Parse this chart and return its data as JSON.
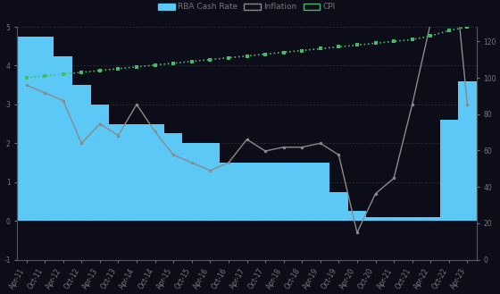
{
  "background_color": "#0d0d1a",
  "plot_bg_color": "#0d0d1a",
  "bar_color": "#5bc8f5",
  "bar_alpha": 1.0,
  "inflation_color": "#8a8a8a",
  "cpi_color": "#44bb66",
  "categories": [
    "Apr-11",
    "Oct-11",
    "Apr-12",
    "Oct-12",
    "Apr-13",
    "Oct-13",
    "Apr-14",
    "Oct-14",
    "Apr-15",
    "Oct-15",
    "Apr-16",
    "Oct-16",
    "Apr-17",
    "Oct-17",
    "Apr-18",
    "Oct-18",
    "Apr-19",
    "Oct-19",
    "Apr-20",
    "Oct-20",
    "Apr-21",
    "Oct-21",
    "Apr-22",
    "Oct-22",
    "Apr-23"
  ],
  "cash_rate": [
    4.75,
    4.75,
    4.25,
    3.5,
    3.0,
    2.5,
    2.5,
    2.5,
    2.25,
    2.0,
    2.0,
    1.5,
    1.5,
    1.5,
    1.5,
    1.5,
    1.5,
    0.75,
    0.25,
    0.1,
    0.1,
    0.1,
    0.1,
    2.6,
    3.6
  ],
  "inflation_values": [
    3.5,
    3.3,
    3.1,
    2.0,
    2.5,
    2.2,
    3.0,
    2.3,
    1.7,
    1.5,
    1.3,
    1.5,
    2.1,
    1.8,
    1.9,
    1.9,
    2.0,
    1.7,
    -0.3,
    0.7,
    1.1,
    3.0,
    5.1,
    7.8,
    3.0
  ],
  "cpi_values": [
    100,
    101,
    102,
    103,
    104,
    105,
    106,
    107,
    108,
    109,
    110,
    111,
    112,
    113,
    114,
    115,
    116,
    117,
    118,
    119,
    120,
    121,
    123,
    126,
    128
  ],
  "ylim_left": [
    -1,
    5
  ],
  "ylim_right": [
    0,
    128
  ],
  "yticks_left": [
    -1,
    0,
    1,
    2,
    3,
    4,
    5
  ],
  "yticks_right": [
    0,
    20,
    40,
    60,
    80,
    100,
    120
  ],
  "grid_color": "#2a2a3a",
  "text_color": "#777777",
  "spine_color": "#555555",
  "legend_labels": [
    "RBA Cash Rate",
    "Inflation",
    "CPI"
  ],
  "tick_fontsize": 5.5,
  "legend_fontsize": 6.5
}
